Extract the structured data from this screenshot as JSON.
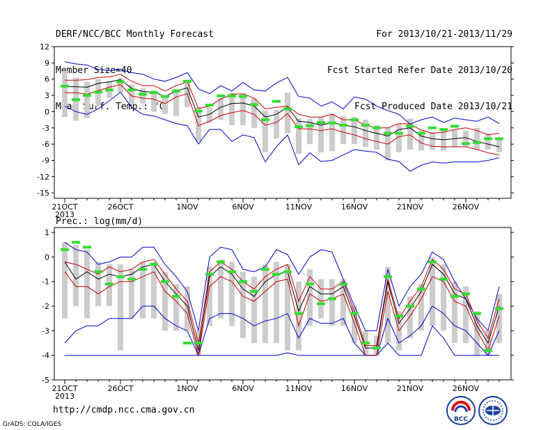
{
  "header": {
    "line1_left": "DERF/NCC/BCC Monthly Forecast",
    "line2_left": "Member Size=40",
    "line3_left": "Mean Surf. Temp.: °C",
    "line1_right": "For 2013/10/21-2013/11/29",
    "line2_right": "Fcst Started Refer Date 2013/10/20",
    "line3_right": "Fcst Produced Date 2013/10/21"
  },
  "lower_label": "Prec.: log(mm/d)",
  "footer": {
    "url": "http://cmdp.ncc.cma.gov.cn",
    "grads": "GrADS: COLA/IGES",
    "logo_text": "BCC"
  },
  "colors": {
    "mean": "#000000",
    "spread": "#cc0000",
    "envelope": "#0000cc",
    "box": "#cccccc",
    "median": "#33dd33"
  },
  "chart_data": [
    {
      "type": "line",
      "x_tick_labels": [
        "21OCT",
        "26OCT",
        "1NOV",
        "6NOV",
        "11NOV",
        "16NOV",
        "21NOV",
        "26NOV"
      ],
      "x_tick_days": [
        0,
        5,
        11,
        16,
        21,
        26,
        31,
        36
      ],
      "x_sub_label": "2013",
      "ylim": [
        -16,
        12
      ],
      "yticks": [
        -15,
        -12,
        -9,
        -6,
        -3,
        0,
        3,
        6,
        9,
        12
      ],
      "days": 40,
      "series": [
        {
          "role": "max",
          "values": [
            9.2,
            8.8,
            8.6,
            7.8,
            7.6,
            7.8,
            7.2,
            6.9,
            6.0,
            5.6,
            6.3,
            7.2,
            4.2,
            3.3,
            4.8,
            3.8,
            5.4,
            4.0,
            3.8,
            5.3,
            6.3,
            2.8,
            2.5,
            1.0,
            1.8,
            0.5,
            2.7,
            2.3,
            1.0,
            0.2,
            -0.5,
            -2.3,
            -1.5,
            -1.0,
            -2.0,
            -1.2,
            -1.5,
            -1.8,
            -1.0,
            -2.2
          ]
        },
        {
          "role": "upper",
          "values": [
            5.8,
            5.8,
            5.9,
            6.3,
            6.4,
            6.9,
            5.6,
            4.8,
            4.8,
            3.8,
            4.8,
            5.5,
            0.6,
            1.0,
            2.3,
            3.2,
            3.3,
            2.5,
            0.5,
            0.8,
            1.0,
            -0.5,
            -1.0,
            -1.0,
            -0.5,
            -1.5,
            -1.5,
            -2.5,
            -3.0,
            -3.0,
            -2.2,
            -2.3,
            -3.4,
            -4.0,
            -3.8,
            -3.3,
            -3.0,
            -3.5,
            -4.3,
            -4.0
          ]
        },
        {
          "role": "mean",
          "values": [
            4.6,
            4.6,
            4.5,
            5.2,
            5.5,
            5.9,
            4.3,
            3.7,
            3.6,
            2.8,
            3.8,
            4.4,
            -1.0,
            -0.5,
            0.8,
            1.5,
            1.6,
            1.0,
            -1.0,
            -0.5,
            0.8,
            -1.8,
            -2.0,
            -2.5,
            -2.0,
            -2.5,
            -2.8,
            -3.5,
            -4.0,
            -4.5,
            -3.3,
            -3.0,
            -4.5,
            -5.0,
            -5.2,
            -5.0,
            -4.8,
            -5.5,
            -6.0,
            -6.5
          ]
        },
        {
          "role": "lower",
          "values": [
            3.5,
            3.5,
            3.2,
            3.9,
            4.5,
            5.0,
            2.9,
            2.5,
            2.3,
            1.5,
            2.7,
            3.3,
            -2.6,
            -1.8,
            -0.7,
            -0.2,
            0.2,
            -0.5,
            -2.5,
            -2.0,
            -0.4,
            -3.2,
            -3.2,
            -3.5,
            -3.2,
            -3.8,
            -4.3,
            -5.0,
            -5.5,
            -6.0,
            -4.6,
            -4.3,
            -5.8,
            -6.4,
            -6.5,
            -6.5,
            -6.5,
            -7.0,
            -7.6,
            -8.0
          ]
        },
        {
          "role": "min",
          "values": [
            1.0,
            0.0,
            -0.5,
            0.5,
            2.0,
            3.6,
            0.8,
            -0.5,
            -0.8,
            -1.5,
            -2.2,
            -2.6,
            -6.0,
            -3.3,
            -3.3,
            -5.5,
            -4.3,
            -4.8,
            -9.3,
            -6.5,
            -4.3,
            -9.8,
            -7.6,
            -9.2,
            -9.0,
            -8.0,
            -7.0,
            -7.3,
            -7.5,
            -8.8,
            -9.2,
            -11.0,
            -9.9,
            -9.3,
            -9.5,
            -9.3,
            -9.3,
            -9.3,
            -9.0,
            -8.5
          ]
        },
        {
          "role": "box_top",
          "values": [
            7.5,
            6.3,
            5.5,
            6.0,
            5.6,
            6.2,
            5.0,
            4.3,
            4.0,
            3.0,
            4.2,
            5.8,
            0.8,
            0.8,
            2.5,
            3.5,
            3.3,
            2.5,
            0.2,
            0.3,
            3.5,
            -1.3,
            -1.3,
            -1.0,
            -0.3,
            -0.8,
            -1.0,
            -1.5,
            -2.5,
            -3.0,
            -2.3,
            -1.3,
            -3.5,
            -3.8,
            -3.5,
            -3.3,
            -3.5,
            -3.0,
            -4.0,
            -5.0
          ]
        },
        {
          "role": "box_bottom",
          "values": [
            -1.0,
            -1.7,
            -1.2,
            1.0,
            2.5,
            3.6,
            1.5,
            1.5,
            0.0,
            -0.4,
            -0.8,
            0.8,
            -5.5,
            -2.0,
            -1.5,
            -2.5,
            -2.5,
            -3.0,
            -7.5,
            -5.0,
            -4.0,
            -7.8,
            -6.0,
            -7.5,
            -7.3,
            -6.0,
            -6.0,
            -6.5,
            -7.0,
            -9.0,
            -7.5,
            -7.0,
            -7.2,
            -7.0,
            -7.2,
            -6.5,
            -6.5,
            -7.0,
            -7.0,
            -7.5
          ]
        },
        {
          "role": "median",
          "values": [
            4.7,
            2.2,
            3.0,
            3.6,
            4.0,
            5.5,
            4.0,
            3.2,
            3.5,
            2.8,
            3.8,
            5.6,
            0.1,
            1.2,
            2.9,
            2.9,
            2.8,
            1.3,
            -1.5,
            1.9,
            0.5,
            -2.8,
            -2.6,
            -2.0,
            -2.1,
            -2.5,
            -1.5,
            -2.5,
            -3.0,
            -4.0,
            -4.0,
            -2.7,
            -4.0,
            -3.0,
            -3.3,
            -2.7,
            -5.9,
            -5.7,
            -5.0,
            -5.0
          ]
        }
      ]
    },
    {
      "type": "line",
      "x_tick_labels": [
        "21OCT",
        "26OCT",
        "1NOV",
        "6NOV",
        "11NOV",
        "16NOV",
        "21NOV",
        "26NOV"
      ],
      "x_tick_days": [
        0,
        5,
        11,
        16,
        21,
        26,
        31,
        36
      ],
      "x_sub_label": "2013",
      "ylim": [
        -5,
        1.2
      ],
      "yticks": [
        -5,
        -4,
        -3,
        -2,
        -1,
        0,
        1
      ],
      "days": 40,
      "series": [
        {
          "role": "max",
          "values": [
            0.6,
            0.3,
            0.2,
            -0.3,
            -0.2,
            0.0,
            0.0,
            0.4,
            0.4,
            -0.3,
            -0.8,
            -1.4,
            -3.0,
            0.0,
            0.4,
            0.3,
            -0.5,
            -0.6,
            -0.4,
            0.3,
            0.1,
            -0.7,
            0.0,
            0.3,
            0.2,
            -0.9,
            -2.0,
            -3.0,
            -3.0,
            -0.5,
            -2.0,
            -1.2,
            -0.7,
            0.2,
            -0.1,
            -1.0,
            -1.7,
            -2.5,
            -3.0,
            -1.2
          ]
        },
        {
          "role": "upper",
          "values": [
            -0.2,
            -0.3,
            -0.5,
            -0.7,
            -0.4,
            -0.6,
            -0.5,
            -0.2,
            -0.1,
            -0.7,
            -1.3,
            -1.8,
            -3.5,
            -0.6,
            -0.2,
            -0.5,
            -1.0,
            -1.3,
            -0.8,
            -0.5,
            -0.3,
            -1.8,
            -0.8,
            -1.3,
            -1.3,
            -1.0,
            -2.2,
            -3.6,
            -3.6,
            -0.9,
            -2.5,
            -1.8,
            -1.2,
            -0.1,
            -0.5,
            -1.3,
            -1.5,
            -2.6,
            -3.3,
            -1.7
          ]
        },
        {
          "role": "mean",
          "values": [
            -0.2,
            -0.9,
            -0.6,
            -0.9,
            -0.7,
            -0.8,
            -0.7,
            -0.4,
            -0.3,
            -1.0,
            -1.5,
            -2.0,
            -3.8,
            -0.8,
            -0.4,
            -0.7,
            -1.3,
            -1.6,
            -1.0,
            -0.7,
            -0.6,
            -2.2,
            -1.2,
            -1.5,
            -1.5,
            -1.2,
            -2.4,
            -3.7,
            -3.7,
            -1.0,
            -2.7,
            -2.1,
            -1.4,
            -0.3,
            -0.7,
            -1.5,
            -1.7,
            -2.8,
            -3.5,
            -2.0
          ]
        },
        {
          "role": "lower",
          "values": [
            -0.6,
            -1.2,
            -1.2,
            -1.5,
            -1.2,
            -1.0,
            -1.0,
            -0.8,
            -0.6,
            -1.4,
            -1.8,
            -2.3,
            -4.0,
            -1.2,
            -0.8,
            -1.0,
            -1.6,
            -1.8,
            -1.4,
            -1.0,
            -0.9,
            -2.8,
            -1.5,
            -1.8,
            -1.7,
            -1.5,
            -2.7,
            -4.0,
            -4.0,
            -1.4,
            -3.0,
            -2.4,
            -1.7,
            -0.8,
            -1.0,
            -1.8,
            -2.0,
            -3.0,
            -3.8,
            -2.4
          ]
        },
        {
          "role": "min",
          "values": [
            -3.5,
            -3.0,
            -2.8,
            -2.8,
            -2.5,
            -2.5,
            -2.5,
            -2.0,
            -2.0,
            -2.5,
            -2.8,
            -3.0,
            -4.0,
            -2.5,
            -2.3,
            -2.3,
            -2.5,
            -2.8,
            -2.6,
            -2.5,
            -2.3,
            -3.3,
            -2.5,
            -2.7,
            -2.7,
            -2.5,
            -3.5,
            -4.0,
            -4.0,
            -2.5,
            -3.5,
            -3.2,
            -2.8,
            -2.0,
            -2.3,
            -2.8,
            -3.0,
            -3.5,
            -4.0,
            -3.0
          ]
        },
        {
          "role": "floor",
          "values": [
            -4,
            -4,
            -4,
            -4,
            -4,
            -4,
            -4,
            -4,
            -4,
            -4,
            -4,
            -4,
            -4,
            -4,
            -4,
            -4,
            -4,
            -4,
            -4,
            -4,
            -3.9,
            -4,
            -4,
            -4,
            -4,
            -4,
            -4,
            -4,
            -4,
            -3.5,
            -4,
            -4,
            -4,
            -2.8,
            -3.3,
            -4,
            -4,
            -4,
            -4,
            -4
          ]
        },
        {
          "role": "box_top",
          "values": [
            0.6,
            0.5,
            0.3,
            -0.2,
            -0.3,
            -0.3,
            -0.5,
            -0.2,
            -0.2,
            -0.6,
            -1.1,
            -1.2,
            -3.0,
            -0.4,
            -0.1,
            -0.2,
            -0.6,
            -0.8,
            -0.3,
            -0.2,
            -0.3,
            -1.0,
            -0.5,
            -0.9,
            -0.9,
            -0.9,
            -2.0,
            -3.0,
            -3.2,
            -0.4,
            -2.2,
            -1.6,
            -1.1,
            0.0,
            -0.3,
            -1.0,
            -1.2,
            -2.2,
            -3.0,
            -1.5
          ]
        },
        {
          "role": "box_bottom",
          "values": [
            -2.5,
            -2.0,
            -2.5,
            -2.0,
            -2.0,
            -3.8,
            -2.5,
            -2.5,
            -2.5,
            -3.0,
            -3.0,
            -3.0,
            -4.0,
            -2.8,
            -2.5,
            -2.8,
            -3.3,
            -3.5,
            -3.5,
            -3.5,
            -3.8,
            -3.8,
            -2.8,
            -2.5,
            -2.8,
            -2.8,
            -3.5,
            -4.0,
            -4.0,
            -3.5,
            -3.8,
            -3.3,
            -3.0,
            -2.8,
            -3.0,
            -3.5,
            -3.5,
            -4.0,
            -4.0,
            -3.5
          ]
        },
        {
          "role": "median",
          "values": [
            0.3,
            0.6,
            0.4,
            -0.6,
            -1.1,
            -0.8,
            -0.9,
            -0.5,
            -0.3,
            -1.0,
            -1.6,
            -3.5,
            -3.5,
            -0.7,
            -0.2,
            -0.6,
            -1.0,
            -1.4,
            -0.5,
            -0.7,
            -0.6,
            -2.3,
            -1.1,
            -1.9,
            -1.7,
            -1.1,
            -2.3,
            -3.5,
            -3.7,
            -0.8,
            -2.4,
            -2.0,
            -1.3,
            -0.2,
            -0.9,
            -1.6,
            -1.5,
            -2.3,
            -3.8,
            -2.1
          ]
        }
      ]
    }
  ]
}
